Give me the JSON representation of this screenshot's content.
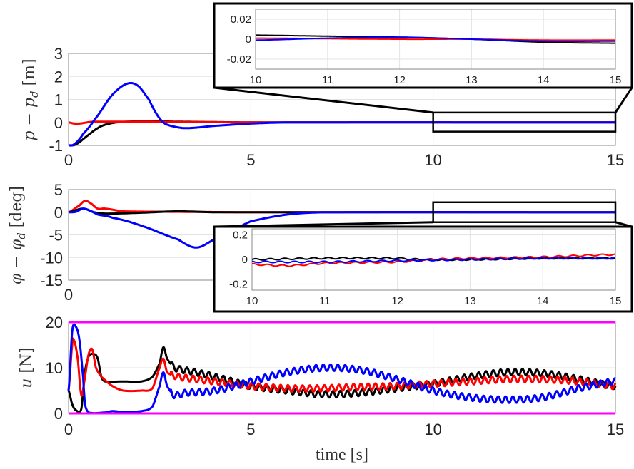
{
  "chart_data": [
    {
      "type": "line",
      "id": "position-error",
      "ylabel": {
        "main": "p − p",
        "sub": "d",
        "unit": " [m]"
      },
      "xlim": [
        0,
        15
      ],
      "ylim": [
        -1,
        3
      ],
      "xticks": [
        "0",
        "5",
        "10",
        "15"
      ],
      "yticks": [
        "-1",
        "0",
        "1",
        "2",
        "3"
      ],
      "grid": true,
      "zoom_region": {
        "x": [
          10,
          15
        ],
        "y": [
          -0.4,
          0.43
        ]
      },
      "series": [
        {
          "color": "#000000",
          "x": [
            0,
            0.2,
            0.5,
            0.8,
            1.0,
            1.3,
            2,
            3,
            5,
            15
          ],
          "y": [
            -1,
            -0.95,
            -0.6,
            -0.25,
            -0.1,
            0,
            0.05,
            0.03,
            0,
            0
          ]
        },
        {
          "color": "#ff0000",
          "x": [
            0,
            0.15,
            0.3,
            0.6,
            1,
            2,
            5,
            15
          ],
          "y": [
            0,
            -0.05,
            -0.05,
            0.02,
            0.03,
            0.03,
            0,
            0
          ]
        },
        {
          "color": "#0000ff",
          "x": [
            0,
            0.15,
            0.4,
            0.8,
            1.2,
            1.6,
            1.9,
            2.2,
            2.4,
            2.6,
            2.8,
            3.2,
            4,
            5,
            6,
            15
          ],
          "y": [
            -1,
            -0.95,
            -0.5,
            0.3,
            1.2,
            1.68,
            1.6,
            1.0,
            0.4,
            0.0,
            -0.15,
            -0.25,
            -0.15,
            -0.05,
            0,
            0
          ]
        }
      ]
    },
    {
      "type": "line",
      "id": "position-error-inset",
      "xlim": [
        10,
        15
      ],
      "ylim": [
        -0.03,
        0.03
      ],
      "xticks": [
        "10",
        "11",
        "12",
        "13",
        "14",
        "15"
      ],
      "yticks": [
        "-0.02",
        "0",
        "0.02"
      ],
      "grid": true,
      "series": [
        {
          "color": "#000000",
          "x": [
            10,
            11,
            12,
            13,
            14,
            15
          ],
          "y": [
            0.004,
            0.003,
            0.002,
            0,
            -0.003,
            -0.004
          ]
        },
        {
          "color": "#ff0000",
          "x": [
            10,
            12,
            13,
            14,
            15
          ],
          "y": [
            0.001,
            0,
            0,
            -0.001,
            -0.001
          ]
        },
        {
          "color": "#0000ff",
          "x": [
            10,
            11,
            12,
            13,
            14,
            15
          ],
          "y": [
            -0.001,
            0.001,
            0.002,
            0,
            -0.002,
            -0.002
          ]
        }
      ]
    },
    {
      "type": "line",
      "id": "angle-error",
      "ylabel": {
        "main": "φ − φ",
        "sub": "d",
        "unit": " [deg]"
      },
      "xlim": [
        0,
        15
      ],
      "ylim": [
        -15,
        5
      ],
      "xticks": [
        "0",
        "5",
        "10",
        "15"
      ],
      "yticks": [
        "-15",
        "-10",
        "-5",
        "0",
        "5"
      ],
      "grid": true,
      "zoom_region": {
        "x": [
          10,
          15
        ],
        "y": [
          -2.2,
          2.2
        ]
      },
      "series": [
        {
          "color": "#ff0000",
          "x": [
            0,
            0.3,
            0.45,
            0.6,
            0.8,
            1,
            1.5,
            3,
            5,
            15
          ],
          "y": [
            0,
            1.5,
            2.5,
            2,
            0.8,
            0.8,
            0.2,
            0.1,
            0,
            0
          ]
        },
        {
          "color": "#000000",
          "x": [
            0,
            0.4,
            0.7,
            1,
            2,
            3,
            4,
            15
          ],
          "y": [
            0,
            0.8,
            0,
            -0.3,
            -0.1,
            0.2,
            0,
            0
          ]
        },
        {
          "color": "#0000ff",
          "x": [
            0,
            0.2,
            0.4,
            0.6,
            0.8,
            1.2,
            2,
            3,
            3.5,
            4,
            4.5,
            5,
            6,
            7,
            15
          ],
          "y": [
            0,
            0.1,
            0.8,
            0.3,
            -0.5,
            -1.2,
            -3,
            -6,
            -7.8,
            -6,
            -4,
            -2,
            -0.5,
            0,
            0
          ]
        }
      ]
    },
    {
      "type": "line",
      "id": "angle-error-inset",
      "xlim": [
        10,
        15
      ],
      "ylim": [
        -0.25,
        0.25
      ],
      "xticks": [
        "10",
        "11",
        "12",
        "13",
        "14",
        "15"
      ],
      "yticks": [
        "-0.2",
        "0",
        "0.2"
      ],
      "grid": true,
      "ripple": {
        "amplitude": 0.006,
        "period_s": 0.2
      },
      "series": [
        {
          "color": "#000000",
          "x": [
            10,
            11,
            12,
            12.3,
            13,
            14,
            15
          ],
          "y": [
            0,
            0.01,
            0.01,
            0,
            0,
            0.01,
            0.01
          ]
        },
        {
          "color": "#ff0000",
          "x": [
            10,
            10.5,
            11,
            12,
            12.5,
            13,
            14,
            15
          ],
          "y": [
            -0.04,
            -0.05,
            -0.03,
            -0.02,
            0,
            0.01,
            0.02,
            0.04
          ]
        },
        {
          "color": "#0000ff",
          "x": [
            10,
            11,
            12,
            13,
            14,
            15
          ],
          "y": [
            -0.02,
            -0.02,
            -0.01,
            0,
            0.01,
            0.01
          ]
        }
      ]
    },
    {
      "type": "line",
      "id": "control-input",
      "ylabel": {
        "main": "u",
        "sub": "",
        "unit": " [N]"
      },
      "xlabel": "time [s]",
      "xlim": [
        0,
        15
      ],
      "ylim": [
        0,
        20
      ],
      "xticks": [
        "0",
        "5",
        "10",
        "15"
      ],
      "yticks": [
        "0",
        "10",
        "20"
      ],
      "grid": true,
      "bounds": {
        "color": "#ff00ff",
        "values": [
          0,
          20
        ]
      },
      "ripple": {
        "amplitude": 0.7,
        "period_s": 0.2,
        "from_s": 2.8
      },
      "series": [
        {
          "color": "#000000",
          "x": [
            0,
            0.1,
            0.2,
            0.35,
            0.45,
            0.55,
            0.7,
            0.8,
            0.9,
            1.0,
            1.5,
            2,
            2.3,
            2.5,
            2.6,
            2.7,
            2.9,
            3.5,
            4,
            5,
            6,
            7,
            8,
            9,
            10,
            11,
            12,
            13,
            14,
            15
          ],
          "y": [
            5,
            2,
            0.7,
            1,
            9,
            12.5,
            13,
            12,
            8,
            7,
            7,
            7,
            8,
            11,
            14.5,
            12,
            10,
            9,
            8,
            6,
            5,
            4.2,
            4.5,
            5.5,
            6.5,
            8,
            9,
            8.8,
            7.5,
            6
          ]
        },
        {
          "color": "#ff0000",
          "x": [
            0,
            0.1,
            0.15,
            0.25,
            0.35,
            0.45,
            0.55,
            0.65,
            0.75,
            0.9,
            1.2,
            1.5,
            2,
            2.3,
            2.5,
            2.6,
            2.7,
            3,
            4,
            5,
            6,
            7,
            8,
            9,
            10,
            11,
            12,
            13,
            14,
            15
          ],
          "y": [
            5,
            15,
            16,
            12,
            4,
            8,
            13,
            14,
            10,
            8,
            6,
            5,
            5,
            5.5,
            10,
            12,
            9,
            8,
            7,
            6,
            5.5,
            5.5,
            5.8,
            6,
            6.5,
            7,
            7.5,
            7.5,
            7,
            6
          ]
        },
        {
          "color": "#0000ff",
          "x": [
            0,
            0.1,
            0.2,
            0.3,
            0.4,
            0.45,
            0.55,
            1,
            1.2,
            1.5,
            2,
            2.3,
            2.5,
            2.6,
            2.7,
            2.9,
            3.2,
            4,
            5,
            6,
            7,
            8,
            9,
            10,
            11,
            12,
            13,
            14,
            15
          ],
          "y": [
            5,
            18,
            19,
            16,
            8,
            2,
            0.2,
            0.2,
            0.5,
            0.3,
            0.5,
            1.5,
            6,
            9,
            6,
            4,
            4.5,
            5,
            7,
            9,
            10,
            9.5,
            7.5,
            5,
            3.5,
            3,
            3.5,
            5.5,
            7
          ]
        }
      ]
    }
  ]
}
